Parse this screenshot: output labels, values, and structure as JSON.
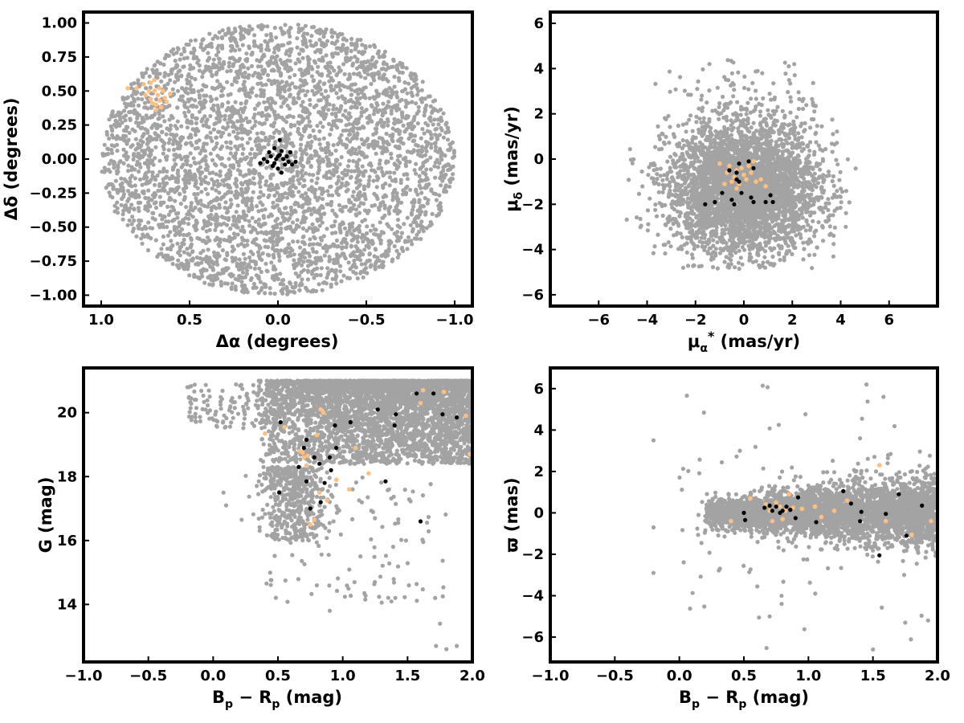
{
  "colors": {
    "field": "#a3a3a3",
    "highlight": "#ffbf80",
    "core": "#000000"
  },
  "chart_data": [
    {
      "type": "scatter",
      "xlabel": "Δα (degrees)",
      "ylabel": "Δδ (degrees)",
      "xlim": [
        1.1,
        -1.1
      ],
      "ylim": [
        -1.08,
        1.08
      ],
      "xticks": [
        1.0,
        0.5,
        0.0,
        -0.5,
        -1.0
      ],
      "xtick_labels": [
        "1.0",
        "0.5",
        "0.0",
        "−0.5",
        "−1.0"
      ],
      "yticks": [
        1.0,
        0.75,
        0.5,
        0.25,
        0.0,
        -0.25,
        -0.5,
        -0.75,
        -1.0
      ],
      "ytick_labels": [
        "1.00",
        "0.75",
        "0.50",
        "0.25",
        "0.00",
        "−0.25",
        "−0.50",
        "−0.75",
        "−1.00"
      ],
      "field_distribution": "uniform disk of radius 1 degree centred at (0,0), ~4000 stars",
      "highlight_points": [
        [
          0.85,
          0.52
        ],
        [
          0.8,
          0.52
        ],
        [
          0.76,
          0.55
        ],
        [
          0.73,
          0.5
        ],
        [
          0.72,
          0.44
        ],
        [
          0.7,
          0.5
        ],
        [
          0.69,
          0.4
        ],
        [
          0.68,
          0.47
        ],
        [
          0.67,
          0.43
        ],
        [
          0.66,
          0.38
        ],
        [
          0.65,
          0.5
        ],
        [
          0.64,
          0.45
        ],
        [
          0.72,
          0.56
        ],
        [
          0.7,
          0.58
        ],
        [
          0.75,
          0.47
        ],
        [
          0.63,
          0.42
        ],
        [
          0.69,
          0.36
        ],
        [
          0.61,
          0.48
        ],
        [
          0.67,
          0.52
        ],
        [
          0.71,
          0.41
        ]
      ],
      "core_points": [
        [
          0.1,
          -0.03
        ],
        [
          0.08,
          0.0
        ],
        [
          0.06,
          -0.02
        ],
        [
          0.05,
          0.05
        ],
        [
          0.04,
          0.02
        ],
        [
          0.03,
          -0.05
        ],
        [
          0.02,
          0.08
        ],
        [
          0.01,
          0.0
        ],
        [
          0.0,
          -0.07
        ],
        [
          -0.01,
          0.14
        ],
        [
          -0.01,
          0.03
        ],
        [
          -0.02,
          -0.1
        ],
        [
          -0.03,
          0.0
        ],
        [
          -0.04,
          -0.04
        ],
        [
          -0.05,
          0.02
        ],
        [
          -0.06,
          -0.02
        ],
        [
          -0.07,
          0.05
        ],
        [
          -0.08,
          -0.04
        ],
        [
          -0.1,
          -0.02
        ],
        [
          0.02,
          -0.03
        ],
        [
          -0.02,
          0.06
        ],
        [
          0.0,
          0.02
        ]
      ],
      "grid": false
    },
    {
      "type": "scatter",
      "xlabel": "μα* (mas/yr)",
      "ylabel": "μδ (mas/yr)",
      "xlim": [
        -8.0,
        8.0
      ],
      "ylim": [
        -6.5,
        6.5
      ],
      "xticks": [
        -6,
        -4,
        -2,
        0,
        2,
        4,
        6
      ],
      "xtick_labels": [
        "−6",
        "−4",
        "−2",
        "0",
        "2",
        "4",
        "6"
      ],
      "yticks": [
        6,
        4,
        2,
        0,
        -2,
        -4,
        -6
      ],
      "ytick_labels": [
        "6",
        "4",
        "2",
        "0",
        "−2",
        "−4",
        "−6"
      ],
      "field_distribution": "elliptical cloud centred near (0,-1.5), clipped at μδ ≈ -4.8, ~4000 stars",
      "highlight_points": [
        [
          -1.0,
          -0.2
        ],
        [
          -0.7,
          -0.6
        ],
        [
          -0.6,
          -0.3
        ],
        [
          -0.5,
          -1.0
        ],
        [
          -0.4,
          -0.8
        ],
        [
          -0.3,
          -0.5
        ],
        [
          -0.2,
          -1.1
        ],
        [
          -0.1,
          -0.4
        ],
        [
          0.0,
          -0.7
        ],
        [
          0.1,
          -0.9
        ],
        [
          0.2,
          -0.3
        ],
        [
          0.3,
          -0.6
        ],
        [
          0.5,
          -1.0
        ],
        [
          0.7,
          -0.9
        ],
        [
          0.9,
          -1.2
        ],
        [
          -0.8,
          -1.1
        ],
        [
          0.4,
          -0.1
        ],
        [
          -0.3,
          -1.3
        ]
      ],
      "core_points": [
        [
          -1.6,
          -2.0
        ],
        [
          -1.2,
          -1.9
        ],
        [
          -0.9,
          -1.5
        ],
        [
          -0.6,
          -0.5
        ],
        [
          -0.5,
          -1.8
        ],
        [
          -0.4,
          -2.0
        ],
        [
          -0.3,
          -0.6
        ],
        [
          -0.2,
          -0.2
        ],
        [
          -0.2,
          -1.0
        ],
        [
          -0.1,
          -1.5
        ],
        [
          0.2,
          -0.1
        ],
        [
          0.3,
          -1.7
        ],
        [
          0.4,
          -0.4
        ],
        [
          0.4,
          -1.9
        ],
        [
          0.9,
          -1.9
        ],
        [
          1.1,
          -1.6
        ],
        [
          1.2,
          -1.9
        ],
        [
          -0.3,
          -0.9
        ]
      ],
      "grid": false
    },
    {
      "type": "scatter",
      "xlabel": "Bp − Rp (mag)",
      "ylabel": "G (mag)",
      "xlim": [
        -1.0,
        2.0
      ],
      "ylim": [
        12.2,
        21.4
      ],
      "xticks": [
        -1.0,
        -0.5,
        0.0,
        0.5,
        1.0,
        1.5,
        2.0
      ],
      "xtick_labels": [
        "−1.0",
        "−0.5",
        "0.0",
        "0.5",
        "1.0",
        "1.5",
        "2.0"
      ],
      "yticks": [
        20,
        18,
        16,
        14
      ],
      "ytick_labels": [
        "20",
        "18",
        "16",
        "14"
      ],
      "field_distribution": "colour-magnitude diagram, dense wedge from Bp−Rp 0.4–2.0 at G 18–21, faint tail to G≈16 near Bp−Rp≈0.8",
      "highlight_points": [
        [
          0.4,
          19.35
        ],
        [
          0.55,
          19.55
        ],
        [
          0.67,
          18.8
        ],
        [
          0.69,
          18.75
        ],
        [
          0.7,
          18.6
        ],
        [
          0.72,
          18.35
        ],
        [
          0.73,
          18.65
        ],
        [
          0.75,
          16.5
        ],
        [
          0.78,
          16.65
        ],
        [
          0.8,
          19.3
        ],
        [
          0.82,
          17.5
        ],
        [
          0.83,
          20.1
        ],
        [
          0.85,
          20.0
        ],
        [
          0.88,
          17.25
        ],
        [
          0.95,
          17.9
        ],
        [
          1.05,
          17.6
        ],
        [
          1.1,
          18.9
        ],
        [
          1.2,
          18.1
        ],
        [
          1.6,
          20.3
        ],
        [
          1.62,
          20.7
        ],
        [
          1.78,
          20.65
        ],
        [
          1.95,
          19.9
        ],
        [
          1.98,
          18.7
        ]
      ],
      "core_points": [
        [
          0.51,
          17.5
        ],
        [
          0.52,
          19.7
        ],
        [
          0.66,
          18.3
        ],
        [
          0.7,
          18.9
        ],
        [
          0.72,
          19.15
        ],
        [
          0.72,
          17.85
        ],
        [
          0.75,
          17.0
        ],
        [
          0.78,
          18.6
        ],
        [
          0.82,
          18.4
        ],
        [
          0.83,
          17.2
        ],
        [
          0.86,
          17.8
        ],
        [
          0.9,
          18.6
        ],
        [
          0.91,
          18.2
        ],
        [
          0.94,
          19.6
        ],
        [
          0.95,
          18.9
        ],
        [
          1.06,
          19.7
        ],
        [
          1.27,
          20.1
        ],
        [
          1.33,
          17.85
        ],
        [
          1.4,
          19.6
        ],
        [
          1.41,
          19.95
        ],
        [
          1.57,
          20.6
        ],
        [
          1.6,
          16.6
        ],
        [
          1.7,
          20.6
        ],
        [
          1.77,
          19.95
        ],
        [
          1.88,
          19.85
        ]
      ],
      "grid": false
    },
    {
      "type": "scatter",
      "xlabel": "Bp − Rp (mag)",
      "ylabel": "ϖ (mas)",
      "xlim": [
        -1.0,
        2.0
      ],
      "ylim": [
        -7.2,
        7.0
      ],
      "xticks": [
        -1.0,
        -0.5,
        0.0,
        0.5,
        1.0,
        1.5,
        2.0
      ],
      "xtick_labels": [
        "−1.0",
        "−0.5",
        "0.0",
        "0.5",
        "1.0",
        "1.5",
        "2.0"
      ],
      "yticks": [
        6,
        4,
        2,
        0,
        -2,
        -4,
        -6
      ],
      "ytick_labels": [
        "6",
        "4",
        "2",
        "0",
        "−2",
        "−4",
        "−6"
      ],
      "field_distribution": "horizontal band around ϖ ≈ 0 from Bp−Rp 0.2–2.0, scatter widening to the red",
      "highlight_points": [
        [
          0.4,
          -0.4
        ],
        [
          0.55,
          0.7
        ],
        [
          0.67,
          0.4
        ],
        [
          0.7,
          0.1
        ],
        [
          0.72,
          -0.4
        ],
        [
          0.75,
          0.5
        ],
        [
          0.78,
          0.3
        ],
        [
          0.8,
          -0.3
        ],
        [
          0.82,
          0.1
        ],
        [
          0.85,
          0.9
        ],
        [
          0.88,
          0.25
        ],
        [
          0.95,
          0.2
        ],
        [
          1.05,
          0.3
        ],
        [
          1.1,
          -0.2
        ],
        [
          1.2,
          0.1
        ],
        [
          1.3,
          0.6
        ],
        [
          1.55,
          2.3
        ],
        [
          1.6,
          -0.4
        ],
        [
          1.8,
          -1.05
        ],
        [
          1.95,
          -0.4
        ]
      ],
      "core_points": [
        [
          0.5,
          0.0
        ],
        [
          0.51,
          -0.35
        ],
        [
          0.66,
          0.25
        ],
        [
          0.7,
          0.35
        ],
        [
          0.72,
          0.1
        ],
        [
          0.75,
          0.3
        ],
        [
          0.78,
          0.0
        ],
        [
          0.8,
          0.1
        ],
        [
          0.83,
          0.3
        ],
        [
          0.86,
          0.15
        ],
        [
          0.9,
          -0.25
        ],
        [
          0.92,
          0.75
        ],
        [
          1.06,
          -0.45
        ],
        [
          1.27,
          1.05
        ],
        [
          1.33,
          0.45
        ],
        [
          1.4,
          -0.4
        ],
        [
          1.41,
          0.05
        ],
        [
          1.55,
          -2.05
        ],
        [
          1.6,
          -0.05
        ],
        [
          1.7,
          0.9
        ],
        [
          1.76,
          -1.1
        ],
        [
          1.88,
          0.35
        ]
      ],
      "grid": false
    }
  ]
}
